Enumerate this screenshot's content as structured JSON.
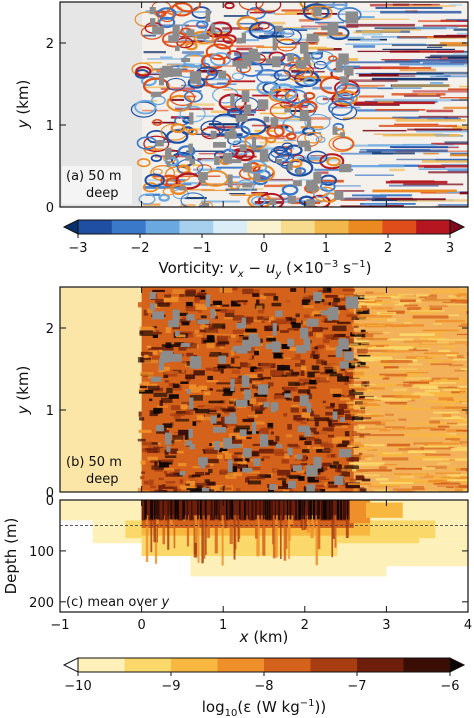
{
  "chart_data": [
    {
      "type": "heatmap",
      "panel_label": "(a) 50 m",
      "panel_label_line2": "deep",
      "ylabel": "y",
      "ylabel_unit": "(km)",
      "xlim": [
        -1,
        4
      ],
      "ylim": [
        0,
        2.5
      ],
      "yticks": [
        "0",
        "1",
        "2"
      ],
      "field": "vorticity at 50 m depth; land/no-data region x < 0 shown light grey; grey blocks are obstacles",
      "colorbar": {
        "label_prefix": "Vorticity: ",
        "label_expr": "v",
        "label_unit": "(×10",
        "label_exp": "−3",
        "label_unit_tail": " s",
        "label_unit_exp": "−1",
        "ticks": [
          "−3",
          "−2",
          "−1",
          "0",
          "1",
          "2",
          "3"
        ],
        "range": [
          -3,
          3
        ],
        "colors": [
          "#08306b",
          "#1f4fa3",
          "#3a78c9",
          "#6aa8e0",
          "#a6d0ee",
          "#dbeef8",
          "#fbf3d0",
          "#f6dc8c",
          "#f2b84b",
          "#ec8a22",
          "#df4e1a",
          "#b5161f",
          "#7f0a1c"
        ]
      }
    },
    {
      "type": "heatmap",
      "panel_label": "(b) 50 m",
      "panel_label_line2": "deep",
      "ylabel": "y",
      "ylabel_unit": "(km)",
      "xlim": [
        -1,
        4
      ],
      "ylim": [
        0,
        2.5
      ],
      "yticks": [
        "0",
        "1",
        "2"
      ],
      "field": "log10 dissipation at 50 m depth"
    },
    {
      "type": "heatmap",
      "panel_label": "(c) mean over ",
      "panel_label_var": "y",
      "ylabel": "Depth (m)",
      "xlabel": "x",
      "xlabel_unit": "(km)",
      "xlim": [
        -1,
        4
      ],
      "ylim": [
        220,
        0
      ],
      "xticks": [
        "−1",
        "0",
        "1",
        "2",
        "3",
        "4"
      ],
      "yticks": [
        "0",
        "100",
        "200"
      ],
      "dashed_line_depth": 50,
      "colorbar": {
        "label_prefix": "log",
        "label_sub": "10",
        "label_mid": "(ε (W kg",
        "label_exp": "−1",
        "label_tail": "))",
        "ticks": [
          "−10",
          "−9",
          "−8",
          "−7",
          "−6"
        ],
        "range": [
          -10,
          -6
        ],
        "colors": [
          "#ffffff",
          "#fdf0b8",
          "#fbd86a",
          "#f8b73f",
          "#ee8f2a",
          "#d4621b",
          "#a83d12",
          "#6e1f0b",
          "#3a0e05",
          "#0b0402"
        ]
      }
    }
  ]
}
